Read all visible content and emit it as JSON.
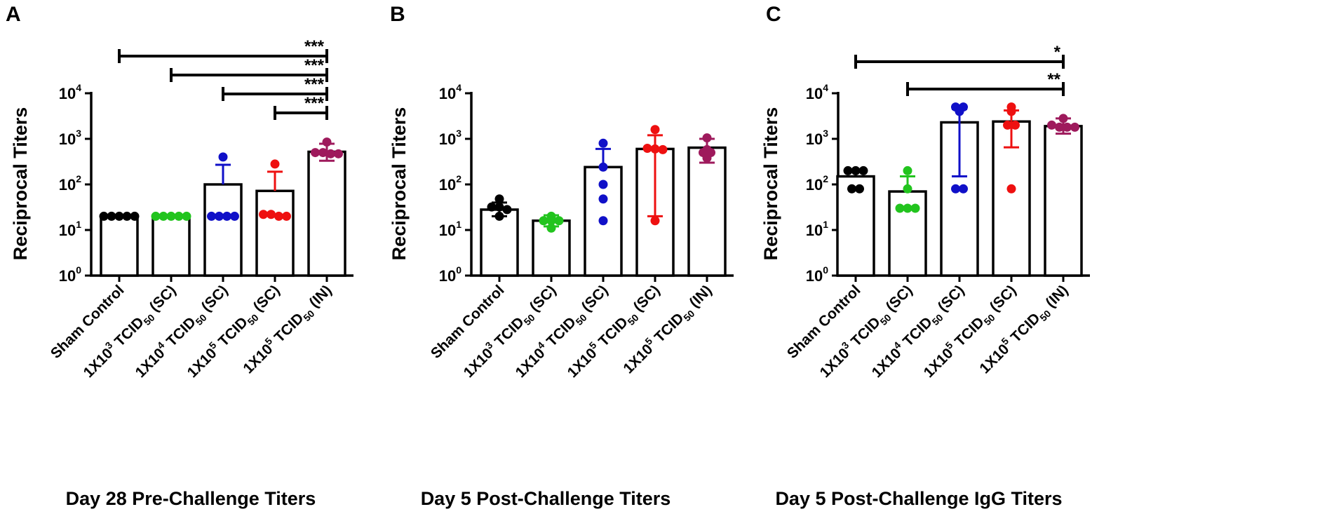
{
  "chart_data": [
    {
      "panel": "A",
      "type": "bar",
      "title": "Day 28 Pre-Challenge Titers",
      "ylabel": "Reciprocal Titers",
      "yscale": "log10",
      "ylim": [
        1,
        10000
      ],
      "yticks": [
        "10^0",
        "10^1",
        "10^2",
        "10^3",
        "10^4"
      ],
      "categories": [
        {
          "pre": "Sham Control",
          "sup": "",
          "mid": "",
          "sub": "",
          "post": ""
        },
        {
          "pre": "1X10",
          "sup": "3",
          "mid": " TCID",
          "sub": "50",
          "post": " (SC)"
        },
        {
          "pre": "1X10",
          "sup": "4",
          "mid": " TCID",
          "sub": "50",
          "post": " (SC)"
        },
        {
          "pre": "1X10",
          "sup": "5",
          "mid": " TCID",
          "sub": "50",
          "post": " (SC)"
        },
        {
          "pre": "1X10",
          "sup": "5",
          "mid": " TCID",
          "sub": "50",
          "post": " (IN)"
        }
      ],
      "colors": [
        "#000000",
        "#22c41e",
        "#1010c8",
        "#ee1010",
        "#9e1a5c"
      ],
      "values": [
        20,
        20,
        100,
        72,
        520
      ],
      "sd_upper": [
        20,
        20,
        270,
        190,
        780
      ],
      "sd_lower": [
        20,
        20,
        100,
        72,
        330
      ],
      "points": [
        [
          20,
          20,
          20,
          20,
          20
        ],
        [
          20,
          20,
          20,
          20,
          20
        ],
        [
          400,
          20,
          20,
          20,
          20
        ],
        [
          280,
          22,
          20,
          20,
          22
        ],
        [
          850,
          500,
          470,
          470,
          500
        ]
      ],
      "significance": [
        {
          "from": 0,
          "to": 4,
          "label": "***"
        },
        {
          "from": 1,
          "to": 4,
          "label": "***"
        },
        {
          "from": 2,
          "to": 4,
          "label": "***"
        },
        {
          "from": 3,
          "to": 4,
          "label": "***"
        }
      ]
    },
    {
      "panel": "B",
      "type": "bar",
      "title": "Day 5 Post-Challenge Titers",
      "ylabel": "Reciprocal Titers",
      "yscale": "log10",
      "ylim": [
        1,
        10000
      ],
      "yticks": [
        "10^0",
        "10^1",
        "10^2",
        "10^3",
        "10^4"
      ],
      "categories": [
        {
          "pre": "Sham Control",
          "sup": "",
          "mid": "",
          "sub": "",
          "post": ""
        },
        {
          "pre": "1X10",
          "sup": "3",
          "mid": " TCID",
          "sub": "50",
          "post": " (SC)"
        },
        {
          "pre": "1X10",
          "sup": "4",
          "mid": " TCID",
          "sub": "50",
          "post": " (SC)"
        },
        {
          "pre": "1X10",
          "sup": "5",
          "mid": " TCID",
          "sub": "50",
          "post": " (SC)"
        },
        {
          "pre": "1X10",
          "sup": "5",
          "mid": " TCID",
          "sub": "50",
          "post": " (IN)"
        }
      ],
      "colors": [
        "#000000",
        "#22c41e",
        "#1010c8",
        "#ee1010",
        "#9e1a5c"
      ],
      "values": [
        28,
        16,
        240,
        600,
        640
      ],
      "sd_upper": [
        40,
        21,
        600,
        1200,
        1000
      ],
      "sd_lower": [
        20,
        12,
        240,
        20,
        300
      ],
      "points": [
        [
          48,
          32,
          28,
          20,
          32
        ],
        [
          20,
          16,
          16,
          11,
          16
        ],
        [
          800,
          240,
          100,
          48,
          16
        ],
        [
          1600,
          620,
          580,
          600,
          16
        ],
        [
          1050,
          580,
          500,
          380,
          500
        ]
      ],
      "significance": []
    },
    {
      "panel": "C",
      "type": "bar",
      "title": "Day 5 Post-Challenge IgG Titers",
      "ylabel": "Reciprocal Titers",
      "yscale": "log10",
      "ylim": [
        1,
        10000
      ],
      "yticks": [
        "10^0",
        "10^1",
        "10^2",
        "10^3",
        "10^4"
      ],
      "categories": [
        {
          "pre": "Sham Control",
          "sup": "",
          "mid": "",
          "sub": "",
          "post": ""
        },
        {
          "pre": "1X10",
          "sup": "3",
          "mid": " TCID",
          "sub": "50",
          "post": " (SC)"
        },
        {
          "pre": "1X10",
          "sup": "4",
          "mid": " TCID",
          "sub": "50",
          "post": " (SC)"
        },
        {
          "pre": "1X10",
          "sup": "5",
          "mid": " TCID",
          "sub": "50",
          "post": " (SC)"
        },
        {
          "pre": "1X10",
          "sup": "5",
          "mid": " TCID",
          "sub": "50",
          "post": " (IN)"
        }
      ],
      "colors": [
        "#000000",
        "#22c41e",
        "#1010c8",
        "#ee1010",
        "#9e1a5c"
      ],
      "values": [
        150,
        70,
        2300,
        2400,
        1900
      ],
      "sd_upper": [
        210,
        150,
        4500,
        4200,
        2800
      ],
      "sd_lower": [
        150,
        70,
        150,
        650,
        1300
      ],
      "points": [
        [
          200,
          200,
          200,
          80,
          80
        ],
        [
          200,
          80,
          30,
          30,
          30
        ],
        [
          5000,
          5000,
          4000,
          80,
          80
        ],
        [
          5000,
          4000,
          2000,
          2000,
          80
        ],
        [
          2800,
          2000,
          1800,
          1800,
          1800
        ]
      ],
      "significance": [
        {
          "from": 0,
          "to": 4,
          "label": "*"
        },
        {
          "from": 1,
          "to": 4,
          "label": "**"
        }
      ]
    }
  ]
}
